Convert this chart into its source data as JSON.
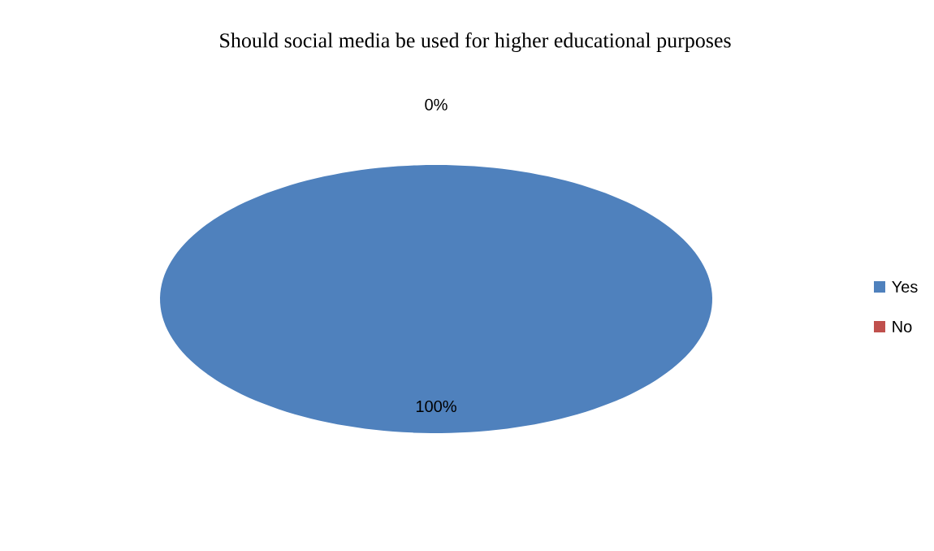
{
  "chart_data": {
    "type": "pie",
    "title": "Should social media be used for higher educational purposes",
    "categories": [
      "Yes",
      "No"
    ],
    "values": [
      100,
      0
    ],
    "colors": [
      "#4f81bd",
      "#c0504d"
    ],
    "value_labels": [
      "100%",
      "0%"
    ],
    "legend": "right"
  }
}
